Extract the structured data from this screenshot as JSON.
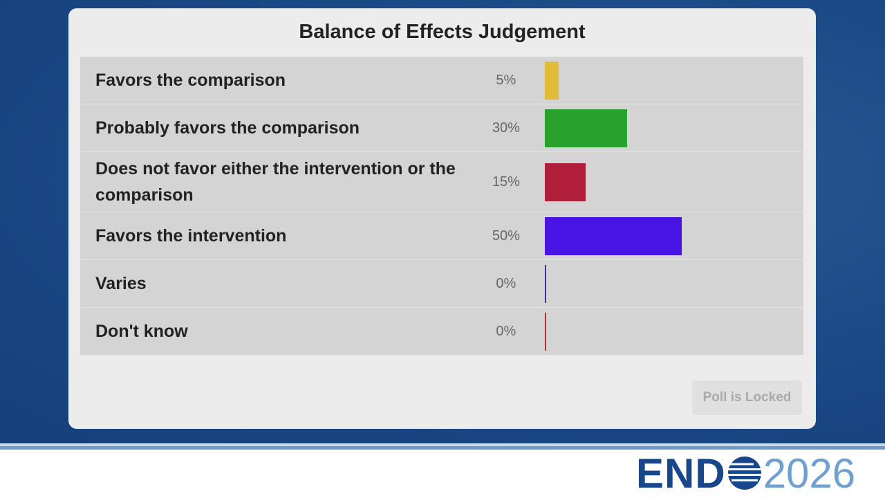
{
  "chart_data": {
    "type": "bar",
    "orientation": "horizontal",
    "title": "Balance of Effects Judgement",
    "categories": [
      "Favors the comparison",
      "Probably favors the comparison",
      "Does not favor either the intervention or the comparison",
      "Favors the intervention",
      "Varies",
      "Don't know"
    ],
    "values": [
      5,
      30,
      15,
      50,
      0,
      0
    ],
    "value_labels": [
      "5%",
      "30%",
      "15%",
      "50%",
      "0%",
      "0%"
    ],
    "colors": [
      "#e9c23a",
      "#2ba52e",
      "#b51f3c",
      "#4a14ec",
      "#4b2b9c",
      "#c03030"
    ]
  },
  "button": "Poll is Locked",
  "logo": {
    "left": "END",
    "right": "2026"
  }
}
